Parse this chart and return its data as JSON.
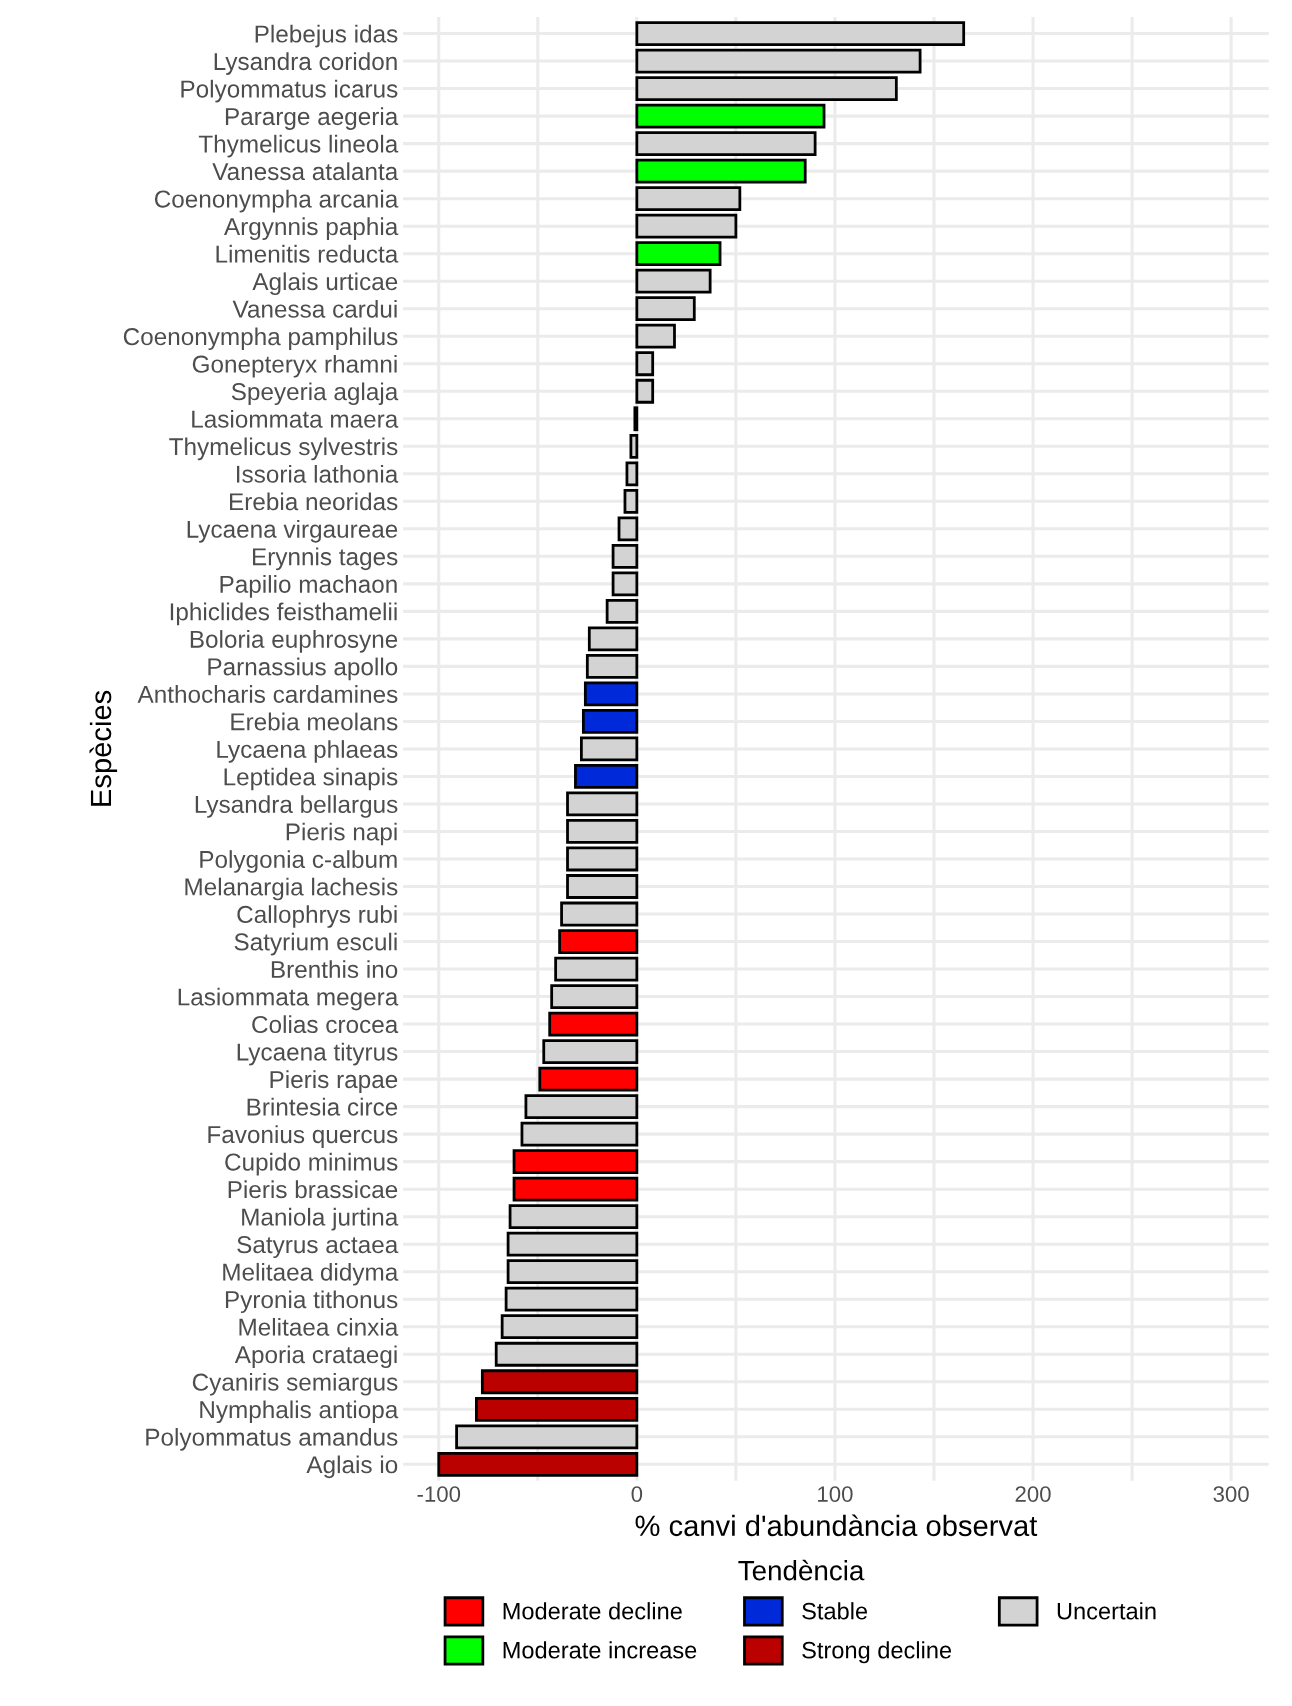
{
  "chart_data": {
    "type": "bar",
    "orientation": "horizontal",
    "xlabel": "% canvi d'abundància observat",
    "ylabel": "Espècies",
    "legend_title": "Tendència",
    "categories": [
      "Plebejus idas",
      "Lysandra coridon",
      "Polyommatus icarus",
      "Pararge aegeria",
      "Thymelicus lineola",
      "Vanessa atalanta",
      "Coenonympha arcania",
      "Argynnis paphia",
      "Limenitis reducta",
      "Aglais urticae",
      "Vanessa cardui",
      "Coenonympha pamphilus",
      "Gonepteryx rhamni",
      "Speyeria aglaja",
      "Lasiommata maera",
      "Thymelicus sylvestris",
      "Issoria lathonia",
      "Erebia neoridas",
      "Lycaena virgaureae",
      "Erynnis tages",
      "Papilio machaon",
      "Iphiclides feisthamelii",
      "Boloria euphrosyne",
      "Parnassius apollo",
      "Anthocharis cardamines",
      "Erebia meolans",
      "Lycaena phlaeas",
      "Leptidea sinapis",
      "Lysandra bellargus",
      "Pieris napi",
      "Polygonia c-album",
      "Melanargia lachesis",
      "Callophrys rubi",
      "Satyrium esculi",
      "Brenthis ino",
      "Lasiommata megera",
      "Colias crocea",
      "Lycaena tityrus",
      "Pieris rapae",
      "Brintesia circe",
      "Favonius quercus",
      "Cupido minimus",
      "Pieris brassicae",
      "Maniola jurtina",
      "Satyrus actaea",
      "Melitaea didyma",
      "Pyronia tithonus",
      "Melitaea cinxia",
      "Aporia crataegi",
      "Cyaniris semiargus",
      "Nymphalis antiopa",
      "Polyommatus amandus",
      "Aglais io"
    ],
    "series": [
      {
        "name": "Moderate decline",
        "color": "#ff0000",
        "values": [
          null,
          null,
          null,
          null,
          null,
          null,
          null,
          null,
          null,
          null,
          null,
          null,
          null,
          null,
          null,
          null,
          null,
          null,
          null,
          null,
          null,
          null,
          null,
          null,
          null,
          null,
          null,
          null,
          null,
          null,
          null,
          null,
          null,
          -39,
          null,
          null,
          -44,
          null,
          -49,
          null,
          null,
          -62,
          -62,
          null,
          null,
          null,
          null,
          null,
          null,
          null,
          null,
          null,
          null
        ]
      },
      {
        "name": "Moderate increase",
        "color": "#00ff00",
        "values": [
          null,
          null,
          null,
          94.5,
          null,
          85,
          null,
          null,
          42,
          null,
          null,
          null,
          null,
          null,
          null,
          null,
          null,
          null,
          null,
          null,
          null,
          null,
          null,
          null,
          null,
          null,
          null,
          null,
          null,
          null,
          null,
          null,
          null,
          null,
          null,
          null,
          null,
          null,
          null,
          null,
          null,
          null,
          null,
          null,
          null,
          null,
          null,
          null,
          null,
          null,
          null,
          null,
          null
        ]
      },
      {
        "name": "Stable",
        "color": "#0029d9",
        "values": [
          null,
          null,
          null,
          null,
          null,
          null,
          null,
          null,
          null,
          null,
          null,
          null,
          null,
          null,
          null,
          null,
          null,
          null,
          null,
          null,
          null,
          null,
          null,
          null,
          -26,
          -27,
          null,
          -31,
          null,
          null,
          null,
          null,
          null,
          null,
          null,
          null,
          null,
          null,
          null,
          null,
          null,
          null,
          null,
          null,
          null,
          null,
          null,
          null,
          null,
          null,
          null,
          null,
          null
        ]
      },
      {
        "name": "Strong decline",
        "color": "#bb0000",
        "values": [
          null,
          null,
          null,
          null,
          null,
          null,
          null,
          null,
          null,
          null,
          null,
          null,
          null,
          null,
          null,
          null,
          null,
          null,
          null,
          null,
          null,
          null,
          null,
          null,
          null,
          null,
          null,
          null,
          null,
          null,
          null,
          null,
          null,
          null,
          null,
          null,
          null,
          null,
          null,
          null,
          null,
          null,
          null,
          null,
          null,
          null,
          null,
          null,
          null,
          -78,
          -81,
          null,
          -100
        ]
      },
      {
        "name": "Uncertain",
        "color": "#d3d3d3",
        "values": [
          165,
          143,
          131,
          null,
          90,
          null,
          52,
          50,
          null,
          37,
          29,
          19,
          8,
          8,
          -1,
          -3,
          -5,
          -6,
          -9,
          -12,
          -12,
          -15,
          -24,
          -25,
          null,
          null,
          -28,
          null,
          -35,
          -35,
          -35,
          -35,
          -38,
          null,
          -41,
          -43,
          null,
          -47,
          null,
          -56,
          -58,
          null,
          null,
          -64,
          -65,
          -65,
          -66,
          -68,
          -71,
          null,
          null,
          -91,
          null
        ]
      }
    ],
    "xlim": [
      -118,
      319
    ],
    "xticks": [
      -100,
      {
        "value": -50,
        "label": null
      },
      0,
      {
        "value": 50,
        "label": null
      },
      100,
      {
        "value": 150,
        "label": null
      },
      200,
      {
        "value": 250,
        "label": null
      },
      300
    ],
    "grid": true,
    "legend": "bottom"
  }
}
